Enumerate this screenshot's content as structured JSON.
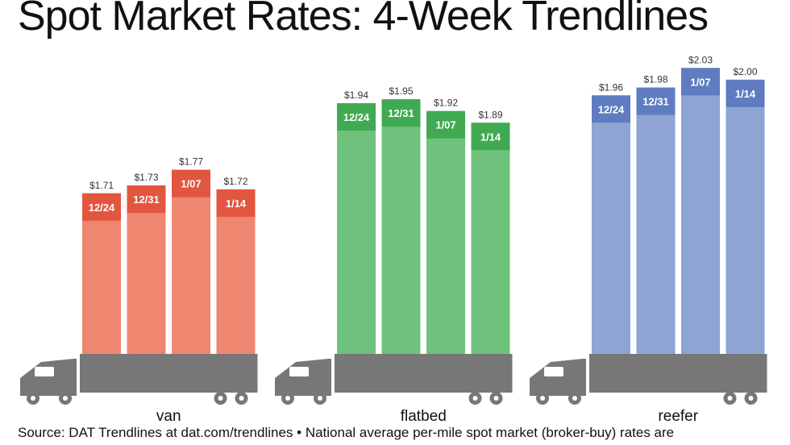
{
  "title": "Spot Market Rates: 4-Week Trendlines",
  "source": "Source: DAT Trendlines at dat.com/trendlines • National average per-mile spot market (broker-buy) rates are",
  "chart_data": {
    "type": "bar",
    "title": "Spot Market Rates: 4-Week Trendlines",
    "unit": "$",
    "ylim": [
      1.3,
      2.08
    ],
    "groups": [
      {
        "name": "van",
        "color": "#ee8670",
        "label_color": "#e2553f",
        "bars": [
          {
            "date": "12/24",
            "value": 1.71,
            "label": "$1.71"
          },
          {
            "date": "12/31",
            "value": 1.73,
            "label": "$1.73"
          },
          {
            "date": "1/07",
            "value": 1.77,
            "label": "$1.77"
          },
          {
            "date": "1/14",
            "value": 1.72,
            "label": "$1.72"
          }
        ]
      },
      {
        "name": "flatbed",
        "color": "#6fc27c",
        "label_color": "#3faa52",
        "bars": [
          {
            "date": "12/24",
            "value": 1.94,
            "label": "$1.94"
          },
          {
            "date": "12/31",
            "value": 1.95,
            "label": "$1.95"
          },
          {
            "date": "1/07",
            "value": 1.92,
            "label": "$1.92"
          },
          {
            "date": "1/14",
            "value": 1.89,
            "label": "$1.89"
          }
        ]
      },
      {
        "name": "reefer",
        "color": "#8ea4d2",
        "label_color": "#5f7cc0",
        "bars": [
          {
            "date": "12/24",
            "value": 1.96,
            "label": "$1.96"
          },
          {
            "date": "12/31",
            "value": 1.98,
            "label": "$1.98"
          },
          {
            "date": "1/07",
            "value": 2.03,
            "label": "$2.03"
          },
          {
            "date": "1/14",
            "value": 2.0,
            "label": "$2.00"
          }
        ]
      }
    ],
    "colors": {
      "truck": "#777777"
    }
  }
}
